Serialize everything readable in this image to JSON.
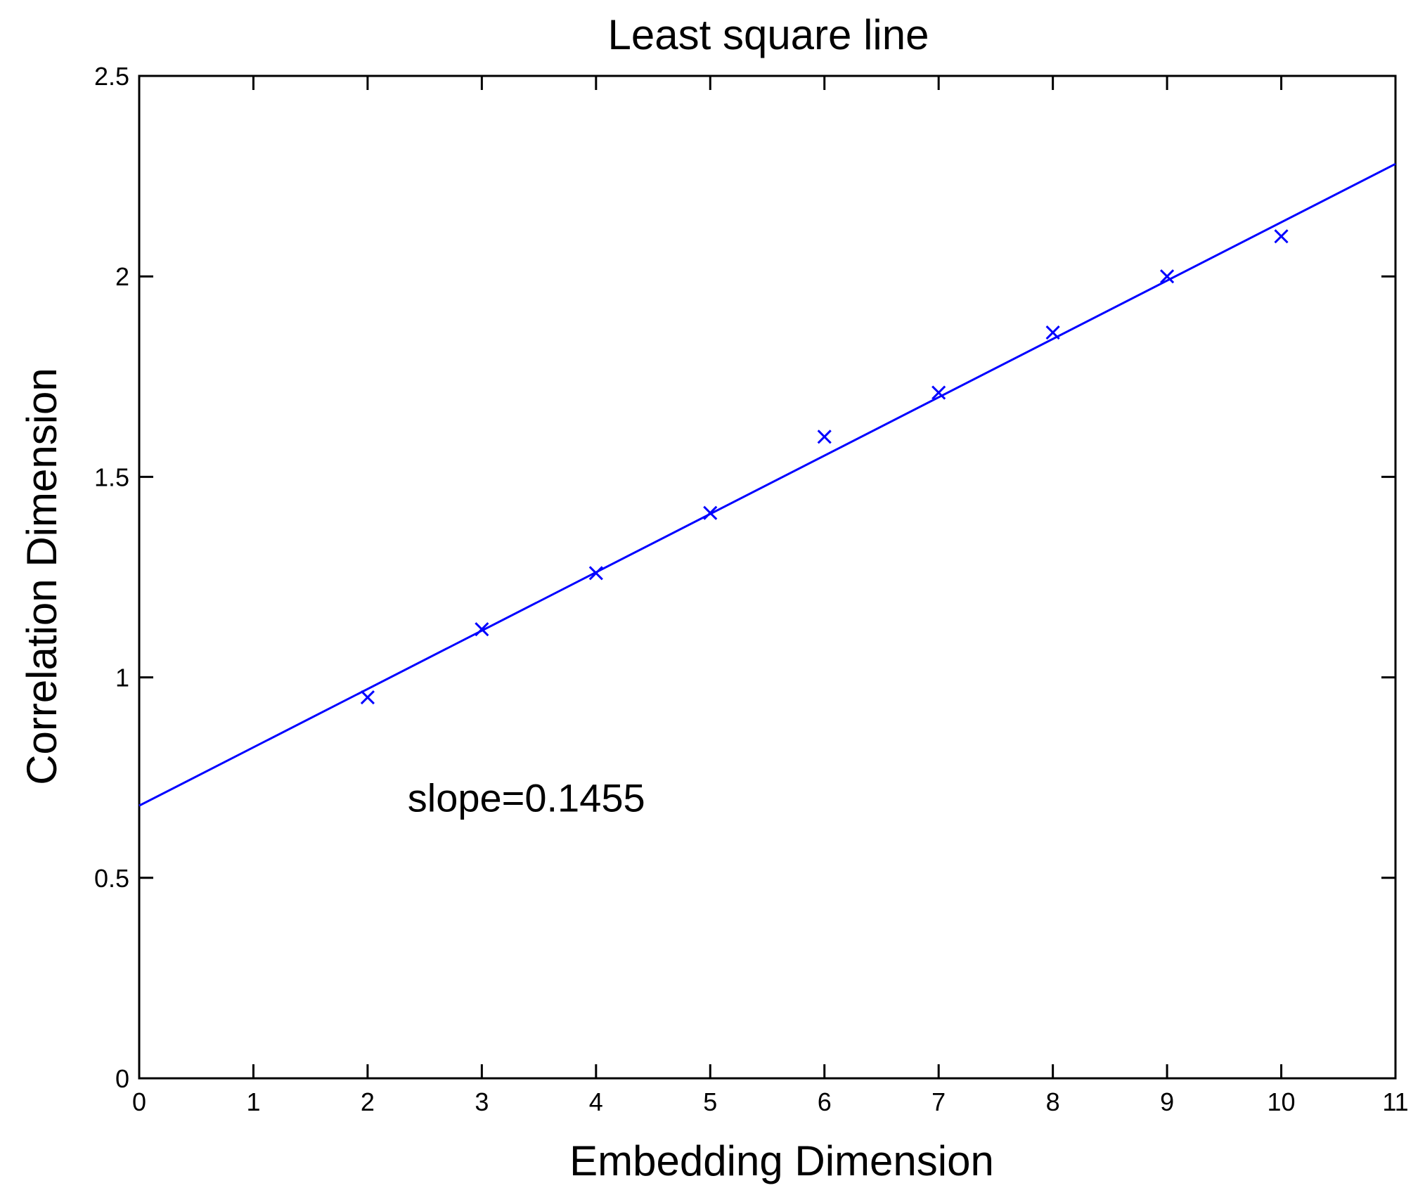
{
  "chart_data": {
    "type": "scatter",
    "title": "Least square line",
    "xlabel": "Embedding Dimension",
    "ylabel": "Correlation Dimension",
    "xlim": [
      0,
      11
    ],
    "ylim": [
      0,
      2.5
    ],
    "x_ticks": [
      "0",
      "1",
      "2",
      "3",
      "4",
      "5",
      "6",
      "7",
      "8",
      "9",
      "10",
      "11"
    ],
    "y_ticks": [
      "0",
      "0.5",
      "1",
      "1.5",
      "2",
      "2.5"
    ],
    "grid": false,
    "series": [
      {
        "marker": "x",
        "color": "#0000ff",
        "x": [
          2,
          3,
          4,
          5,
          6,
          7,
          8,
          9,
          10
        ],
        "y": [
          0.95,
          1.12,
          1.26,
          1.41,
          1.6,
          1.71,
          1.86,
          2.0,
          2.1
        ]
      }
    ],
    "fit_line": {
      "color": "#0000ff",
      "slope": 0.1455,
      "intercept": 0.68,
      "x_range": [
        0,
        11
      ]
    },
    "annotations": [
      {
        "text": "slope=0.1455",
        "x": 2.35,
        "y": 0.7
      }
    ]
  }
}
